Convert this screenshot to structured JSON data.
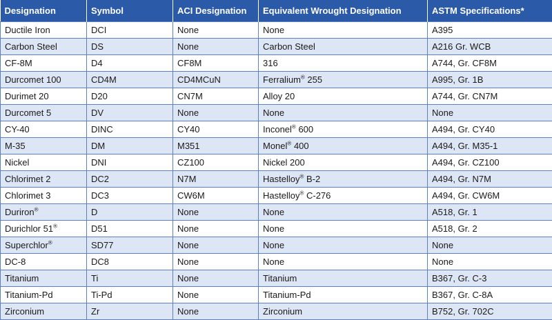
{
  "headers": [
    "Designation",
    "Symbol",
    "ACI Designation",
    "Equivalent Wrought Designation",
    "ASTM Specifications*"
  ],
  "rows": [
    {
      "designation": "Ductile Iron",
      "designation_sup": "",
      "symbol": "DCI",
      "aci": "None",
      "wrought": "None",
      "wrought_sup": "",
      "wrought_suffix": "",
      "astm": "A395"
    },
    {
      "designation": "Carbon Steel",
      "designation_sup": "",
      "symbol": "DS",
      "aci": "None",
      "wrought": "Carbon Steel",
      "wrought_sup": "",
      "wrought_suffix": "",
      "astm": "A216 Gr. WCB"
    },
    {
      "designation": "CF-8M",
      "designation_sup": "",
      "symbol": "D4",
      "aci": "CF8M",
      "wrought": "316",
      "wrought_sup": "",
      "wrought_suffix": "",
      "astm": "A744, Gr. CF8M"
    },
    {
      "designation": "Durcomet 100",
      "designation_sup": "",
      "symbol": "CD4M",
      "aci": "CD4MCuN",
      "wrought": "Ferralium",
      "wrought_sup": "®",
      "wrought_suffix": " 255",
      "astm": "A995, Gr. 1B"
    },
    {
      "designation": "Durimet 20",
      "designation_sup": "",
      "symbol": "D20",
      "aci": "CN7M",
      "wrought": "Alloy 20",
      "wrought_sup": "",
      "wrought_suffix": "",
      "astm": "A744, Gr. CN7M"
    },
    {
      "designation": "Durcomet 5",
      "designation_sup": "",
      "symbol": "DV",
      "aci": "None",
      "wrought": "None",
      "wrought_sup": "",
      "wrought_suffix": "",
      "astm": "None"
    },
    {
      "designation": "CY-40",
      "designation_sup": "",
      "symbol": "DINC",
      "aci": "CY40",
      "wrought": "Inconel",
      "wrought_sup": "®",
      "wrought_suffix": " 600",
      "astm": "A494, Gr. CY40"
    },
    {
      "designation": "M-35",
      "designation_sup": "",
      "symbol": "DM",
      "aci": "M351",
      "wrought": "Monel",
      "wrought_sup": "®",
      "wrought_suffix": " 400",
      "astm": "A494, Gr. M35-1"
    },
    {
      "designation": "Nickel",
      "designation_sup": "",
      "symbol": "DNI",
      "aci": "CZ100",
      "wrought": "Nickel 200",
      "wrought_sup": "",
      "wrought_suffix": "",
      "astm": "A494, Gr. CZ100"
    },
    {
      "designation": "Chlorimet 2",
      "designation_sup": "",
      "symbol": "DC2",
      "aci": "N7M",
      "wrought": "Hastelloy",
      "wrought_sup": "®",
      "wrought_suffix": " B-2",
      "astm": "A494, Gr. N7M"
    },
    {
      "designation": "Chlorimet 3",
      "designation_sup": "",
      "symbol": "DC3",
      "aci": "CW6M",
      "wrought": "Hastelloy",
      "wrought_sup": "®",
      "wrought_suffix": " C-276",
      "astm": "A494, Gr. CW6M"
    },
    {
      "designation": "Duriron",
      "designation_sup": "®",
      "symbol": "D",
      "aci": "None",
      "wrought": "None",
      "wrought_sup": "",
      "wrought_suffix": "",
      "astm": "A518, Gr. 1"
    },
    {
      "designation": "Durichlor 51",
      "designation_sup": "®",
      "symbol": "D51",
      "aci": "None",
      "wrought": "None",
      "wrought_sup": "",
      "wrought_suffix": "",
      "astm": "A518, Gr. 2"
    },
    {
      "designation": "Superchlor",
      "designation_sup": "®",
      "symbol": "SD77",
      "aci": "None",
      "wrought": "None",
      "wrought_sup": "",
      "wrought_suffix": "",
      "astm": "None"
    },
    {
      "designation": "DC-8",
      "designation_sup": "",
      "symbol": "DC8",
      "aci": "None",
      "wrought": "None",
      "wrought_sup": "",
      "wrought_suffix": "",
      "astm": "None"
    },
    {
      "designation": "Titanium",
      "designation_sup": "",
      "symbol": "Ti",
      "aci": "None",
      "wrought": "Titanium",
      "wrought_sup": "",
      "wrought_suffix": "",
      "astm": "B367, Gr. C-3"
    },
    {
      "designation": "Titanium-Pd",
      "designation_sup": "",
      "symbol": "Ti-Pd",
      "aci": "None",
      "wrought": "Titanium-Pd",
      "wrought_sup": "",
      "wrought_suffix": "",
      "astm": "B367, Gr. C-8A"
    },
    {
      "designation": "Zirconium",
      "designation_sup": "",
      "symbol": "Zr",
      "aci": "None",
      "wrought": "Zirconium",
      "wrought_sup": "",
      "wrought_suffix": "",
      "astm": "B752, Gr. 702C"
    }
  ]
}
